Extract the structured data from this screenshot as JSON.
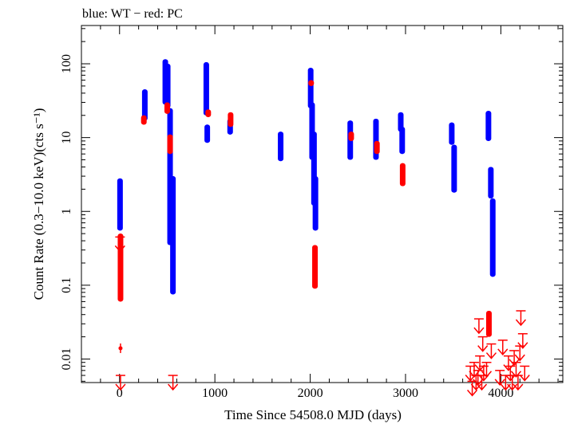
{
  "chart_data": {
    "type": "scatter",
    "title": "blue: WT − red: PC",
    "xlabel": "Time Since 54508.0 MJD (days)",
    "ylabel": "Count Rate (0.3−10.0 keV)(cts s⁻¹)",
    "x_scale": "linear",
    "y_scale": "log",
    "xlim": [
      -400,
      4650
    ],
    "ylim": [
      0.0048,
      330
    ],
    "x_ticks": [
      0,
      1000,
      2000,
      3000,
      4000
    ],
    "x_tick_labels": [
      "0",
      "1000",
      "2000",
      "3000",
      "4000"
    ],
    "y_ticks": [
      0.01,
      0.1,
      1,
      10,
      100
    ],
    "y_tick_labels": [
      "0.01",
      "0.1",
      "1",
      "10",
      "100"
    ],
    "grid": false,
    "colors": {
      "WT": "#0000ff",
      "PC": "#ff0000"
    },
    "series": [
      {
        "name": "WT",
        "segments": [
          {
            "x": 5,
            "ymin": 0.55,
            "ymax": 2.8
          },
          {
            "x": 265,
            "ymin": 17,
            "ymax": 45
          },
          {
            "x": 480,
            "ymin": 28,
            "ymax": 115
          },
          {
            "x": 505,
            "ymin": 25,
            "ymax": 100
          },
          {
            "x": 530,
            "ymin": 0.35,
            "ymax": 25
          },
          {
            "x": 560,
            "ymin": 0.075,
            "ymax": 3
          },
          {
            "x": 910,
            "ymin": 20,
            "ymax": 105
          },
          {
            "x": 920,
            "ymin": 8.5,
            "ymax": 15
          },
          {
            "x": 1160,
            "ymin": 11,
            "ymax": 18
          },
          {
            "x": 1690,
            "ymin": 4.8,
            "ymax": 12
          },
          {
            "x": 2005,
            "ymin": 25,
            "ymax": 88
          },
          {
            "x": 2020,
            "ymin": 5,
            "ymax": 30
          },
          {
            "x": 2040,
            "ymin": 1.2,
            "ymax": 12
          },
          {
            "x": 2055,
            "ymin": 0.55,
            "ymax": 3
          },
          {
            "x": 2420,
            "ymin": 5,
            "ymax": 17
          },
          {
            "x": 2690,
            "ymin": 5,
            "ymax": 18
          },
          {
            "x": 2950,
            "ymin": 12,
            "ymax": 22
          },
          {
            "x": 2965,
            "ymin": 6,
            "ymax": 14
          },
          {
            "x": 3485,
            "ymin": 8,
            "ymax": 16
          },
          {
            "x": 3510,
            "ymin": 1.8,
            "ymax": 8
          },
          {
            "x": 3870,
            "ymin": 9,
            "ymax": 23
          },
          {
            "x": 3895,
            "ymin": 1.5,
            "ymax": 4
          },
          {
            "x": 3915,
            "ymin": 0.13,
            "ymax": 1.5
          }
        ]
      },
      {
        "name": "PC",
        "segments": [
          {
            "x": 10,
            "ymin": 0.06,
            "ymax": 0.5
          },
          {
            "x": 255,
            "ymin": 15,
            "ymax": 20
          },
          {
            "x": 500,
            "ymin": 21,
            "ymax": 30
          },
          {
            "x": 530,
            "ymin": 6,
            "ymax": 11
          },
          {
            "x": 930,
            "ymin": 19,
            "ymax": 24
          },
          {
            "x": 1165,
            "ymin": 14,
            "ymax": 22
          },
          {
            "x": 2010,
            "ymin": 50,
            "ymax": 60
          },
          {
            "x": 2050,
            "ymin": 0.09,
            "ymax": 0.35
          },
          {
            "x": 2430,
            "ymin": 9,
            "ymax": 12
          },
          {
            "x": 2700,
            "ymin": 6,
            "ymax": 9
          },
          {
            "x": 2970,
            "ymin": 2.2,
            "ymax": 4.5
          },
          {
            "x": 3875,
            "ymin": 0.02,
            "ymax": 0.045
          }
        ],
        "points": [
          {
            "x": 10,
            "y": 0.014
          }
        ],
        "upper_limits": [
          {
            "x": 5,
            "y": 0.45
          },
          {
            "x": 10,
            "y": 0.006
          },
          {
            "x": 560,
            "y": 0.006
          },
          {
            "x": 3680,
            "y": 0.008
          },
          {
            "x": 3700,
            "y": 0.005
          },
          {
            "x": 3720,
            "y": 0.009
          },
          {
            "x": 3740,
            "y": 0.006
          },
          {
            "x": 3760,
            "y": 0.007
          },
          {
            "x": 3770,
            "y": 0.035
          },
          {
            "x": 3780,
            "y": 0.011
          },
          {
            "x": 3800,
            "y": 0.006
          },
          {
            "x": 3810,
            "y": 0.02
          },
          {
            "x": 3820,
            "y": 0.008
          },
          {
            "x": 3850,
            "y": 0.009
          },
          {
            "x": 3900,
            "y": 0.016
          },
          {
            "x": 3990,
            "y": 0.007
          },
          {
            "x": 4020,
            "y": 0.018
          },
          {
            "x": 4050,
            "y": 0.006
          },
          {
            "x": 4080,
            "y": 0.011
          },
          {
            "x": 4100,
            "y": 0.008
          },
          {
            "x": 4120,
            "y": 0.006
          },
          {
            "x": 4140,
            "y": 0.013
          },
          {
            "x": 4160,
            "y": 0.009
          },
          {
            "x": 4180,
            "y": 0.006
          },
          {
            "x": 4200,
            "y": 0.015
          },
          {
            "x": 4210,
            "y": 0.045
          },
          {
            "x": 4230,
            "y": 0.022
          },
          {
            "x": 4250,
            "y": 0.008
          }
        ]
      }
    ]
  }
}
